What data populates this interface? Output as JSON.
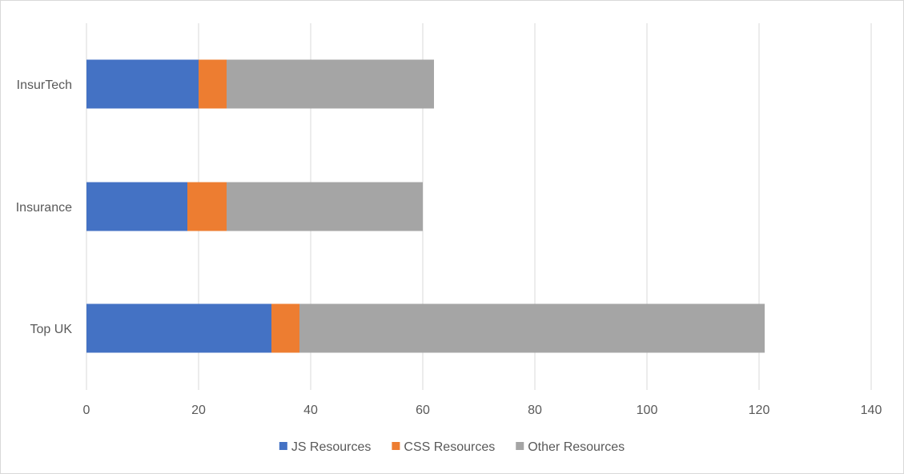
{
  "chart_data": {
    "type": "bar",
    "orientation": "horizontal",
    "stacked": true,
    "categories": [
      "InsurTech",
      "Insurance",
      "Top UK"
    ],
    "series": [
      {
        "name": "JS Resources",
        "values": [
          20,
          18,
          33
        ],
        "color": "#4472c4"
      },
      {
        "name": "CSS Resources",
        "values": [
          5,
          7,
          5
        ],
        "color": "#ed7d31"
      },
      {
        "name": "Other Resources",
        "values": [
          37,
          35,
          83
        ],
        "color": "#a5a5a5"
      }
    ],
    "xlim": [
      0,
      140
    ],
    "x_ticks": [
      0,
      20,
      40,
      60,
      80,
      100,
      120,
      140
    ],
    "x_tick_labels": [
      "0",
      "20",
      "40",
      "60",
      "80",
      "100",
      "120",
      "140"
    ],
    "grid": "vertical",
    "gridline_color": "#d9d9d9",
    "legend_position": "bottom",
    "title": "",
    "xlabel": "",
    "ylabel": ""
  }
}
